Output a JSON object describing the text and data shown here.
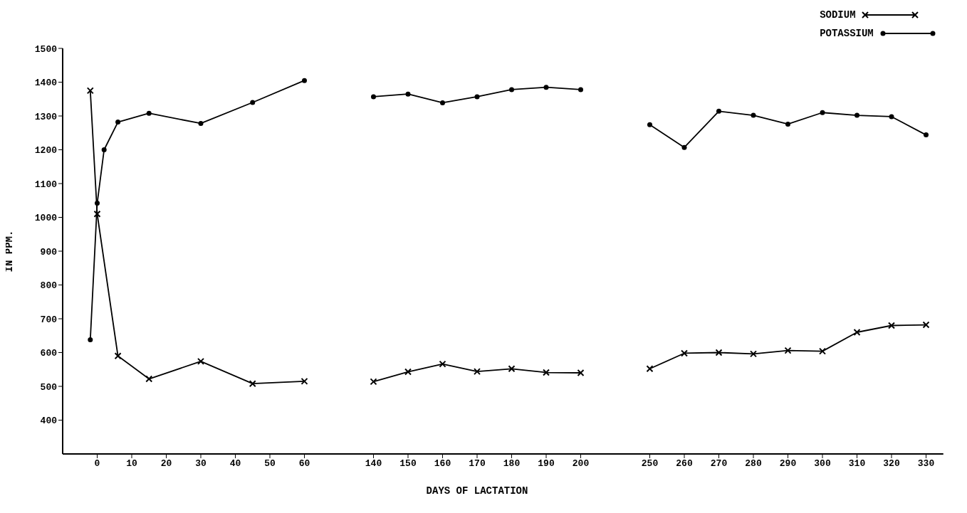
{
  "chart_data": [
    {
      "type": "line",
      "ylabel": "IN PPM.",
      "xlim": [
        -10,
        70
      ],
      "xticks": [
        0,
        10,
        20,
        30,
        40,
        50,
        60
      ],
      "ylim": [
        300,
        1500
      ],
      "yticks": [
        400,
        500,
        600,
        700,
        800,
        900,
        1000,
        1100,
        1200,
        1300,
        1400,
        1500
      ],
      "grid": false,
      "legend": false,
      "series": [
        {
          "color": "#000000",
          "marker": "cross",
          "x": [
            -2,
            0,
            6,
            15,
            30,
            45,
            60
          ],
          "values": [
            1375,
            1010,
            590,
            522,
            574,
            508,
            515
          ]
        },
        {
          "color": "#000000",
          "marker": "circle",
          "x": [
            -2,
            0,
            2,
            6,
            15,
            30,
            45,
            60
          ],
          "values": [
            638,
            1042,
            1200,
            1282,
            1308,
            1278,
            1340,
            1405
          ]
        }
      ]
    },
    {
      "type": "line",
      "xlabel": "DAYS OF LACTATION",
      "xlim": [
        130,
        210
      ],
      "xticks": [
        140,
        150,
        160,
        170,
        180,
        190,
        200
      ],
      "ylim": [
        300,
        1500
      ],
      "tick_labels": "x",
      "grid": false,
      "legend": false,
      "series": [
        {
          "color": "#000000",
          "marker": "cross",
          "x": [
            140,
            150,
            160,
            170,
            180,
            190,
            200
          ],
          "values": [
            514,
            543,
            566,
            544,
            552,
            541,
            540
          ]
        },
        {
          "color": "#000000",
          "marker": "circle",
          "x": [
            140,
            150,
            160,
            170,
            180,
            190,
            200
          ],
          "values": [
            1357,
            1365,
            1339,
            1357,
            1378,
            1385,
            1378
          ]
        }
      ]
    },
    {
      "type": "line",
      "xlim": [
        240,
        335
      ],
      "xticks": [
        250,
        260,
        270,
        280,
        290,
        300,
        310,
        320,
        330
      ],
      "ylim": [
        300,
        1500
      ],
      "tick_labels": "x",
      "grid": false,
      "legend": "top right",
      "series": [
        {
          "name": "SODIUM",
          "color": "#000000",
          "marker": "cross",
          "x": [
            250,
            260,
            270,
            280,
            290,
            300,
            310,
            320,
            330
          ],
          "values": [
            552,
            598,
            600,
            596,
            606,
            604,
            660,
            680,
            682
          ]
        },
        {
          "name": "POTASSIUM",
          "color": "#000000",
          "marker": "circle",
          "x": [
            250,
            260,
            270,
            280,
            290,
            300,
            310,
            320,
            330
          ],
          "values": [
            1274,
            1207,
            1314,
            1302,
            1276,
            1310,
            1302,
            1298,
            1244
          ]
        }
      ]
    }
  ]
}
